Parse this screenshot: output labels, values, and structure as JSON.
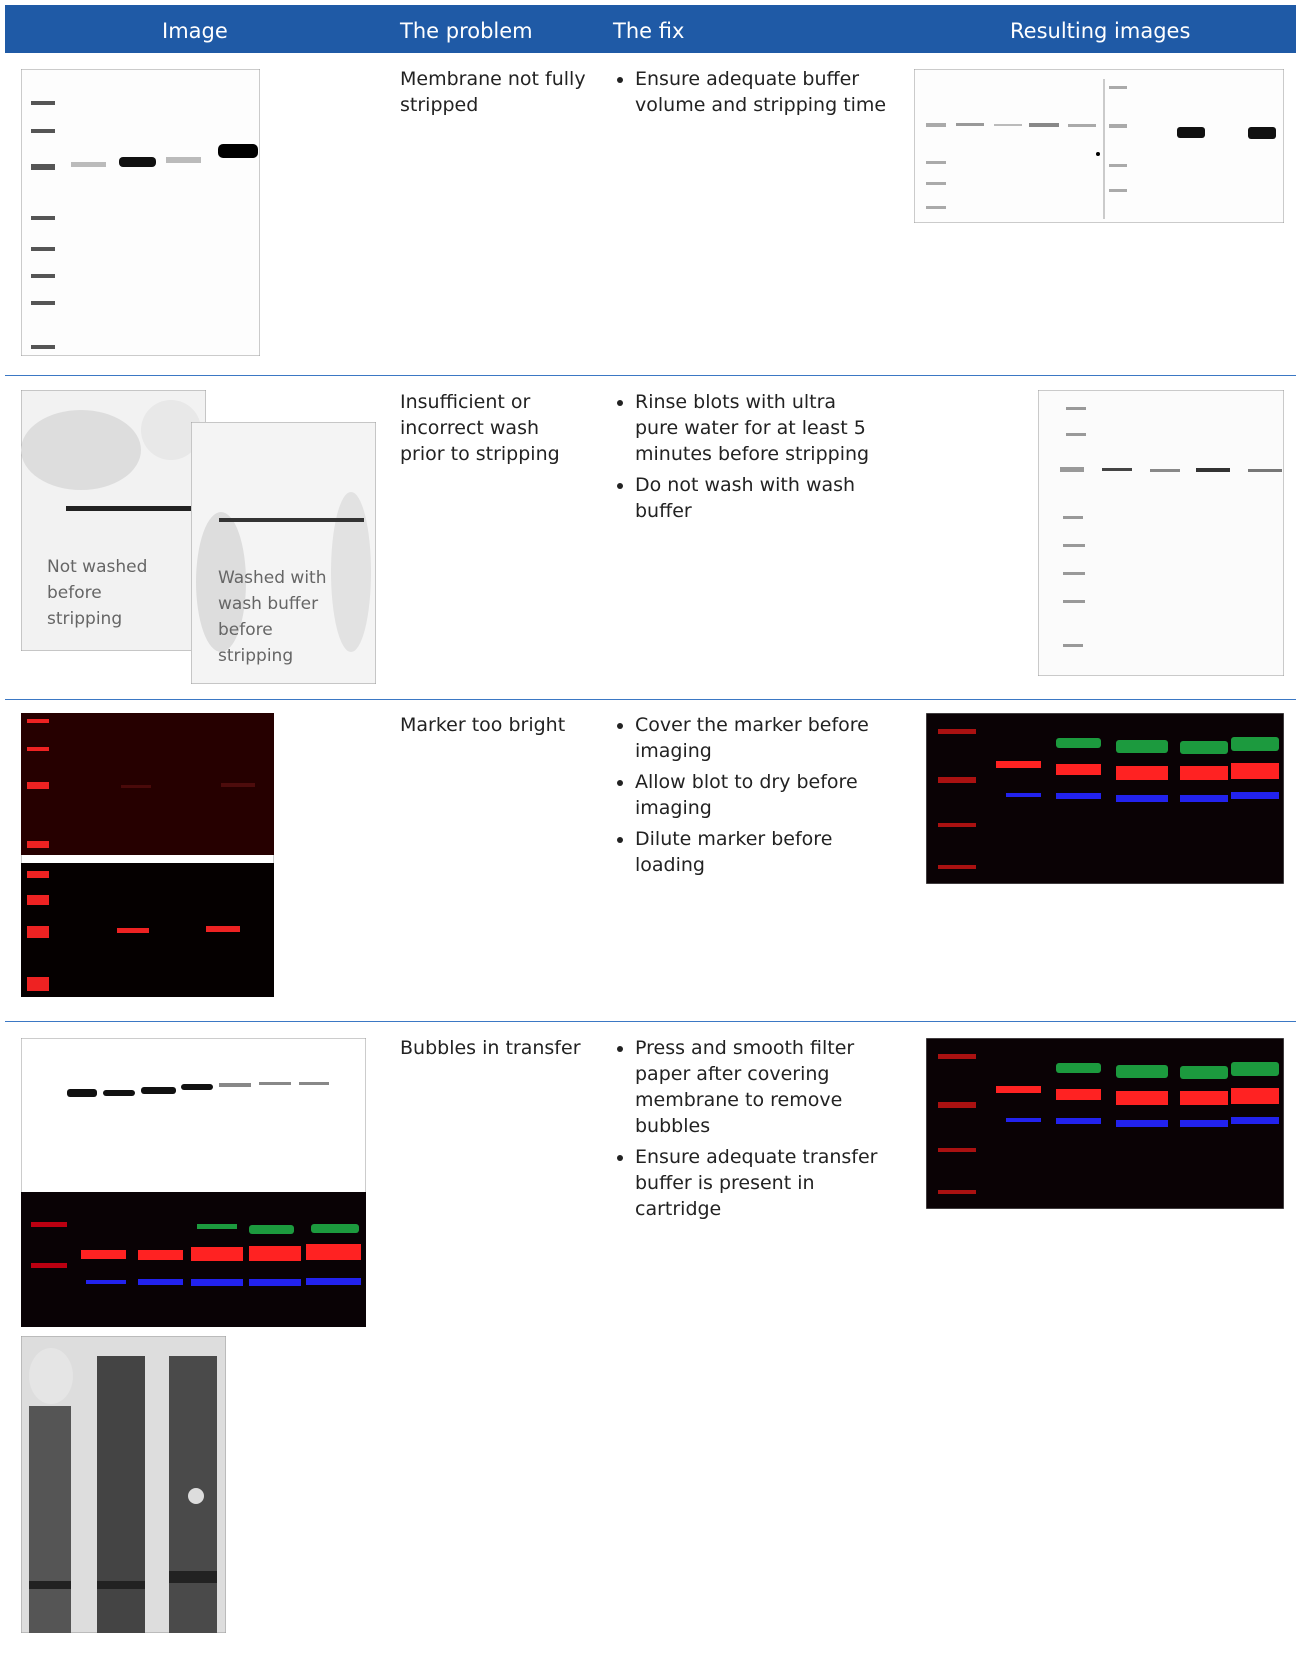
{
  "header": {
    "columns": [
      "Image",
      "The problem",
      "The fix",
      "Resulting images"
    ]
  },
  "rows": [
    {
      "problem": "Membrane not fully stripped",
      "fixes": [
        "Ensure adequate buffer volume and stripping time"
      ]
    },
    {
      "problem": "Insufficient or incorrect wash prior to stripping",
      "image_captions": [
        "Not washed before stripping",
        "Washed with wash buffer before stripping"
      ],
      "fixes": [
        "Rinse blots with ultra pure water for at least 5 minutes before stripping",
        "Do not wash with wash buffer"
      ]
    },
    {
      "problem": "Marker too bright",
      "fixes": [
        "Cover the marker before imaging",
        "Allow blot to dry before imaging",
        "Dilute marker before loading"
      ]
    },
    {
      "problem": "Bubbles in transfer",
      "fixes": [
        "Press and smooth filter paper after covering membrane to remove bubbles",
        "Ensure adequate transfer buffer is present in cartridge"
      ]
    }
  ]
}
